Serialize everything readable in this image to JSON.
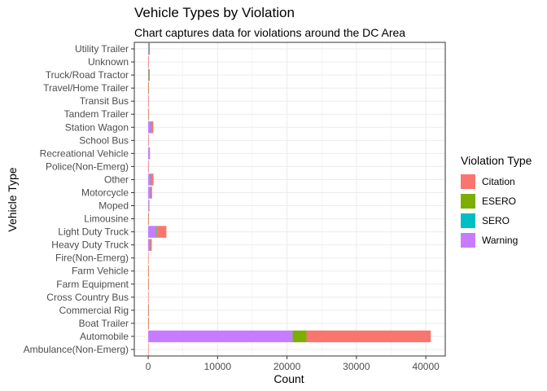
{
  "chart_data": {
    "type": "bar",
    "orientation": "horizontal",
    "stacked": true,
    "title": "Vehicle Types by Violation",
    "subtitle": "Chart captures data for violations around the DC Area",
    "xlabel": "Count",
    "ylabel": "Vehicle Type",
    "xlim": [
      -2000,
      42800
    ],
    "xticks": [
      0,
      10000,
      20000,
      30000,
      40000
    ],
    "grid": true,
    "legend_position": "right",
    "legend_title": "Violation Type",
    "categories": [
      "Ambulance(Non-Emerg)",
      "Automobile",
      "Boat Trailer",
      "Commercial Rig",
      "Cross Country Bus",
      "Farm Equipment",
      "Farm Vehicle",
      "Fire(Non-Emerg)",
      "Heavy Duty Truck",
      "Light Duty Truck",
      "Limousine",
      "Moped",
      "Motorcycle",
      "Other",
      "Police(Non-Emerg)",
      "Recreational Vehicle",
      "School Bus",
      "Station Wagon",
      "Tandem Trailer",
      "Transit Bus",
      "Travel/Home Trailer",
      "Truck/Road Tractor",
      "Unknown",
      "Utility Trailer"
    ],
    "series": [
      {
        "name": "Warning",
        "color": "#C77CFF",
        "values": [
          0,
          20800,
          10,
          20,
          0,
          5,
          5,
          0,
          280,
          1200,
          10,
          90,
          360,
          380,
          10,
          150,
          5,
          430,
          5,
          5,
          10,
          50,
          10,
          80
        ]
      },
      {
        "name": "SERO",
        "color": "#00BFC4",
        "values": [
          0,
          10,
          0,
          0,
          0,
          0,
          0,
          0,
          5,
          10,
          0,
          0,
          5,
          5,
          0,
          5,
          0,
          5,
          0,
          0,
          0,
          5,
          0,
          5
        ]
      },
      {
        "name": "ESERO",
        "color": "#7CAE00",
        "values": [
          0,
          2000,
          5,
          20,
          0,
          5,
          5,
          0,
          40,
          110,
          5,
          20,
          40,
          60,
          0,
          20,
          0,
          60,
          5,
          0,
          5,
          100,
          0,
          90
        ]
      },
      {
        "name": "Citation",
        "color": "#F8766D",
        "values": [
          5,
          17900,
          20,
          30,
          10,
          10,
          10,
          5,
          190,
          1300,
          5,
          40,
          150,
          320,
          5,
          80,
          10,
          240,
          5,
          5,
          10,
          60,
          5,
          40
        ]
      }
    ]
  },
  "legend": {
    "title": "Violation Type",
    "items": [
      {
        "label": "Citation",
        "color": "#F8766D"
      },
      {
        "label": "ESERO",
        "color": "#7CAE00"
      },
      {
        "label": "SERO",
        "color": "#00BFC4"
      },
      {
        "label": "Warning",
        "color": "#C77CFF"
      }
    ]
  }
}
